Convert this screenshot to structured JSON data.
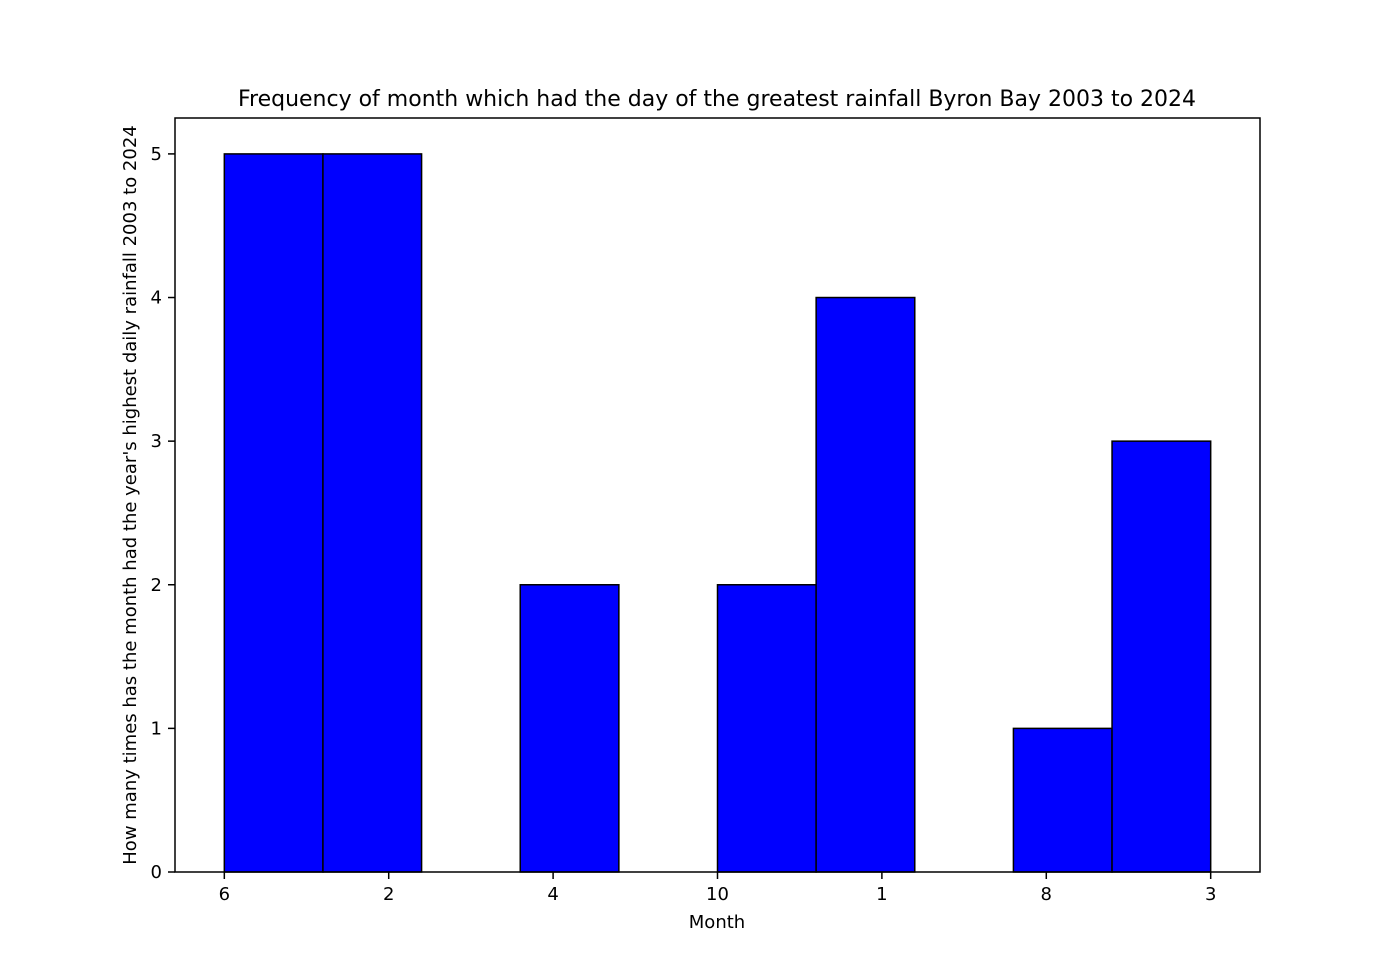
{
  "chart_data": {
    "type": "bar",
    "title": "Frequency of month which had the day of the greatest rainfall Byron Bay 2003 to 2024",
    "xlabel": "Month",
    "ylabel": "How many times has the month had the year's highest daily rainfall 2003 to 2024",
    "x_tick_labels": [
      "6",
      "2",
      "4",
      "10",
      "1",
      "8",
      "3"
    ],
    "bins": [
      {
        "start": 0.0,
        "end": 0.6,
        "value": 5
      },
      {
        "start": 0.6,
        "end": 1.2,
        "value": 5
      },
      {
        "start": 1.2,
        "end": 1.8,
        "value": 0
      },
      {
        "start": 1.8,
        "end": 2.4,
        "value": 2
      },
      {
        "start": 2.4,
        "end": 3.0,
        "value": 0
      },
      {
        "start": 3.0,
        "end": 3.6,
        "value": 2
      },
      {
        "start": 3.6,
        "end": 4.2,
        "value": 4
      },
      {
        "start": 4.2,
        "end": 4.8,
        "value": 0
      },
      {
        "start": 4.8,
        "end": 5.4,
        "value": 1
      },
      {
        "start": 5.4,
        "end": 6.0,
        "value": 3
      }
    ],
    "xlim": [
      -0.3,
      6.3
    ],
    "ylim": [
      0,
      5.25
    ],
    "y_ticks": [
      0,
      1,
      2,
      3,
      4,
      5
    ],
    "grid": false,
    "bar_color": "#0000ff",
    "edge_color": "#000000"
  }
}
